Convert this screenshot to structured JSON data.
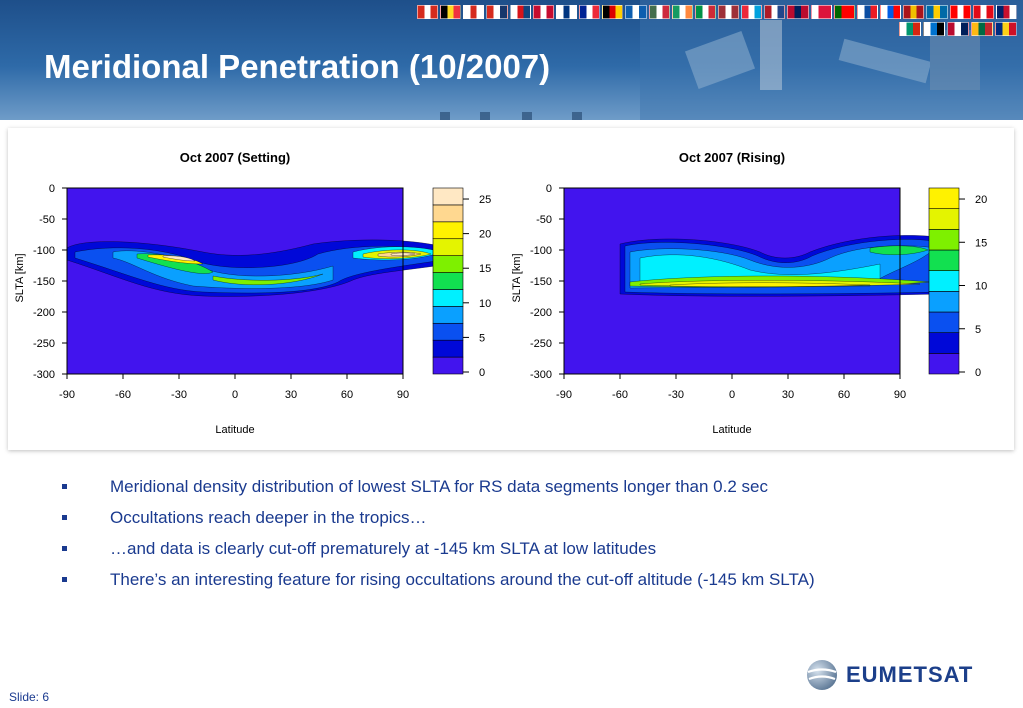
{
  "slide": {
    "title": "Meridional Penetration (10/2007)",
    "number_label": "Slide: 6"
  },
  "header": {
    "flag_rows": [
      [
        [
          "#d52b1e",
          "#ffffff",
          "#d52b1e"
        ],
        [
          "#000000",
          "#fdda24",
          "#ef3340"
        ],
        [
          "#ffffff",
          "#d52b1e",
          "#ffffff"
        ],
        [
          "#d52b1e",
          "#ffffff",
          "#17376b"
        ],
        [
          "#ffffff",
          "#d7141a",
          "#11457e"
        ],
        [
          "#c60c30",
          "#ffffff",
          "#c60c30"
        ],
        [
          "#ffffff",
          "#003580",
          "#ffffff"
        ],
        [
          "#002395",
          "#ffffff",
          "#ed2939"
        ],
        [
          "#000000",
          "#dd0000",
          "#ffce00"
        ],
        [
          "#0d5eaf",
          "#ffffff",
          "#0d5eaf"
        ],
        [
          "#436f4d",
          "#ffffff",
          "#cd2a3e"
        ],
        [
          "#169b62",
          "#ffffff",
          "#ff883e"
        ],
        [
          "#009246",
          "#ffffff",
          "#ce2b37"
        ],
        [
          "#9e3039",
          "#ffffff",
          "#9e3039"
        ],
        [
          "#ed2939",
          "#ffffff",
          "#00a1de"
        ],
        [
          "#ae1c28",
          "#ffffff",
          "#21468b"
        ],
        [
          "#ba0c2f",
          "#00205b",
          "#ba0c2f"
        ],
        [
          "#ffffff",
          "#dc143c",
          "#dc143c"
        ],
        [
          "#006600",
          "#ff0000",
          "#ff0000"
        ],
        [
          "#ffffff",
          "#0b4ea2",
          "#ee1c25"
        ],
        [
          "#ffffff",
          "#005ce5",
          "#ff0000"
        ],
        [
          "#aa151b",
          "#f1bf00",
          "#aa151b"
        ],
        [
          "#006aa7",
          "#fecc00",
          "#006aa7"
        ],
        [
          "#ff0000",
          "#ffffff",
          "#ff0000"
        ],
        [
          "#e30a17",
          "#ffffff",
          "#e30a17"
        ],
        [
          "#012169",
          "#c8102e",
          "#ffffff"
        ]
      ],
      [
        [
          "#ffffff",
          "#00966e",
          "#d62612"
        ],
        [
          "#ffffff",
          "#0072ce",
          "#000000"
        ],
        [
          "#ba0c2f",
          "#ffffff",
          "#00205b"
        ],
        [
          "#fdb913",
          "#006a44",
          "#c1272d"
        ],
        [
          "#002b7f",
          "#fcd116",
          "#ce1126"
        ]
      ]
    ]
  },
  "plots": [
    {
      "title": "Oct 2007 (Setting)",
      "colorbar_ticks": [
        "25",
        "20",
        "15",
        "10",
        "5",
        "0"
      ]
    },
    {
      "title": "Oct 2007 (Rising)",
      "colorbar_ticks": [
        "20",
        "15",
        "10",
        "5",
        "0"
      ]
    }
  ],
  "axes": {
    "xlabel": "Latitude",
    "ylabel": "SLTA [km]",
    "x_ticks": [
      "-90",
      "-60",
      "-30",
      "0",
      "30",
      "60",
      "90"
    ],
    "y_ticks": [
      "0",
      "-50",
      "-100",
      "-150",
      "-200",
      "-250",
      "-300"
    ]
  },
  "colors": {
    "background_level": "#4214ee",
    "contour_levels": [
      "#4214ee",
      "#0008d8",
      "#0a50f0",
      "#0aa0ff",
      "#00f0ff",
      "#12e050",
      "#7ef000",
      "#e4f400",
      "#fff200",
      "#ffd890",
      "#ffe8c4"
    ]
  },
  "bullets": [
    "Meridional density distribution of lowest SLTA for RS data segments longer than 0.2 sec",
    "Occultations reach deeper in the tropics…",
    "…and  data is clearly cut-off prematurely at -145 km SLTA at low latitudes",
    "There’s an interesting feature for rising occultations around the cut-off altitude (-145 km SLTA)"
  ],
  "logo": {
    "text": "EUMETSAT"
  }
}
